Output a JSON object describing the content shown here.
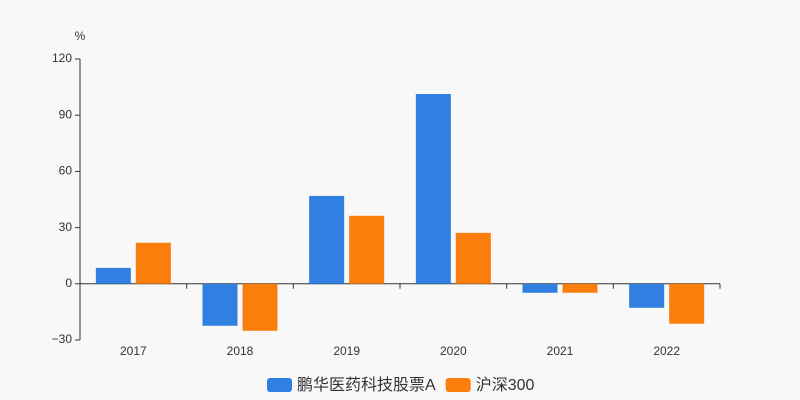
{
  "chart_data": {
    "type": "bar",
    "y_label": "%",
    "categories": [
      "2017",
      "2018",
      "2019",
      "2020",
      "2021",
      "2022"
    ],
    "series": [
      {
        "name": "鹏华医药科技股票A",
        "color": "#2f80e0",
        "values": [
          8.5,
          -22.4,
          46.9,
          101.3,
          -4.8,
          -12.8
        ]
      },
      {
        "name": "沪深300",
        "color": "#fb7e0d",
        "values": [
          21.9,
          -25.1,
          36.3,
          27.2,
          -4.8,
          -21.3
        ]
      }
    ],
    "ylim": [
      -30,
      120
    ],
    "yticks": [
      {
        "value": -30,
        "label": "−30"
      },
      0,
      30,
      60,
      90,
      120
    ],
    "grid": false,
    "legend": "bottom"
  }
}
